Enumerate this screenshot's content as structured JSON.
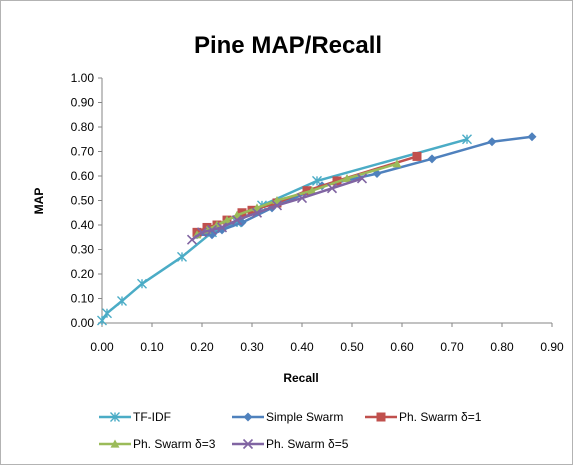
{
  "chart_data": {
    "type": "line",
    "title": "Pine MAP/Recall",
    "xlabel": "Recall",
    "ylabel": "MAP",
    "xlim": [
      0,
      0.9
    ],
    "ylim": [
      0,
      1
    ],
    "xticks": [
      "0.00",
      "0.10",
      "0.20",
      "0.30",
      "0.40",
      "0.50",
      "0.60",
      "0.70",
      "0.80",
      "0.90"
    ],
    "yticks": [
      "0.00",
      "0.10",
      "0.20",
      "0.30",
      "0.40",
      "0.50",
      "0.60",
      "0.70",
      "0.80",
      "0.90",
      "1.00"
    ],
    "grid": false,
    "legend": "bottom",
    "series": [
      {
        "name": "TF-IDF",
        "color": "#4bacc6",
        "marker": "star",
        "points": [
          [
            0.0,
            0.01
          ],
          [
            0.01,
            0.04
          ],
          [
            0.04,
            0.09
          ],
          [
            0.08,
            0.16
          ],
          [
            0.16,
            0.27
          ],
          [
            0.22,
            0.37
          ],
          [
            0.27,
            0.41
          ],
          [
            0.32,
            0.48
          ],
          [
            0.43,
            0.58
          ],
          [
            0.73,
            0.75
          ]
        ]
      },
      {
        "name": "Simple Swarm",
        "color": "#4f81bd",
        "marker": "diamond",
        "points": [
          [
            0.19,
            0.36
          ],
          [
            0.22,
            0.36
          ],
          [
            0.24,
            0.38
          ],
          [
            0.28,
            0.41
          ],
          [
            0.34,
            0.47
          ],
          [
            0.44,
            0.56
          ],
          [
            0.55,
            0.61
          ],
          [
            0.66,
            0.67
          ],
          [
            0.78,
            0.74
          ],
          [
            0.86,
            0.76
          ]
        ]
      },
      {
        "name": "Ph. Swarm  δ=1",
        "color": "#c0504d",
        "marker": "square",
        "points": [
          [
            0.19,
            0.37
          ],
          [
            0.21,
            0.39
          ],
          [
            0.23,
            0.4
          ],
          [
            0.25,
            0.42
          ],
          [
            0.28,
            0.45
          ],
          [
            0.3,
            0.46
          ],
          [
            0.35,
            0.49
          ],
          [
            0.41,
            0.54
          ],
          [
            0.47,
            0.58
          ],
          [
            0.63,
            0.68
          ]
        ]
      },
      {
        "name": "Ph. Swarm  δ=3",
        "color": "#9bbb59",
        "marker": "triangle",
        "points": [
          [
            0.19,
            0.36
          ],
          [
            0.21,
            0.38
          ],
          [
            0.23,
            0.4
          ],
          [
            0.25,
            0.42
          ],
          [
            0.27,
            0.44
          ],
          [
            0.31,
            0.47
          ],
          [
            0.35,
            0.5
          ],
          [
            0.42,
            0.54
          ],
          [
            0.49,
            0.59
          ],
          [
            0.59,
            0.65
          ]
        ]
      },
      {
        "name": "Ph. Swarm  δ=5",
        "color": "#8064a2",
        "marker": "x",
        "points": [
          [
            0.18,
            0.34
          ],
          [
            0.2,
            0.37
          ],
          [
            0.22,
            0.38
          ],
          [
            0.24,
            0.39
          ],
          [
            0.27,
            0.42
          ],
          [
            0.31,
            0.45
          ],
          [
            0.35,
            0.48
          ],
          [
            0.4,
            0.51
          ],
          [
            0.46,
            0.55
          ],
          [
            0.52,
            0.59
          ]
        ]
      }
    ]
  }
}
